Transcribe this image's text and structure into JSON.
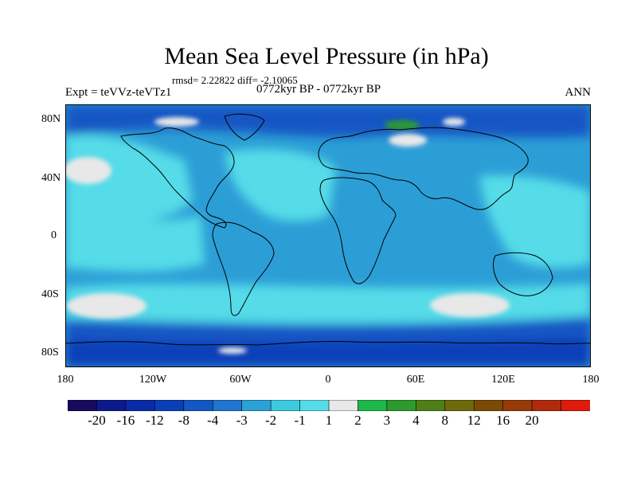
{
  "header": {
    "title": "Mean Sea Level Pressure (in hPa)",
    "stats": "rmsd= 2.22822 diff= -2.10065",
    "expt": "Expt = teVVz-teVTz1",
    "period": "0772kyr BP - 0772kyr BP",
    "season": "ANN"
  },
  "axes": {
    "lat_labels": [
      "80N",
      "40N",
      "0",
      "40S",
      "80S"
    ],
    "lon_labels": [
      "180",
      "120W",
      "60W",
      "0",
      "60E",
      "120E",
      "180"
    ]
  },
  "colorbar": {
    "levels": [
      "-20",
      "-16",
      "-12",
      "-8",
      "-4",
      "-3",
      "-2",
      "-1",
      "1",
      "2",
      "3",
      "4",
      "8",
      "12",
      "16",
      "20"
    ],
    "colors": [
      "#1a0a5e",
      "#0d1a8c",
      "#0a2aa8",
      "#0b3fb8",
      "#1357c4",
      "#1f75cf",
      "#2ba1d6",
      "#3ccae0",
      "#55dce8",
      "#e8e8e8",
      "#1eb84a",
      "#2e9a2e",
      "#4f7f16",
      "#6e6a0c",
      "#7a4a06",
      "#963a0a",
      "#b02a0c",
      "#e01a0c"
    ]
  },
  "map_fields": {
    "ocean_bg": "#2c9ed6",
    "mid_ocean": "#55dce8",
    "weak": "#e8e8e8",
    "high_lat": "#1357c4",
    "polar": "#0b3fb8",
    "positive": "#2e9a2e",
    "coast": "#000000"
  }
}
